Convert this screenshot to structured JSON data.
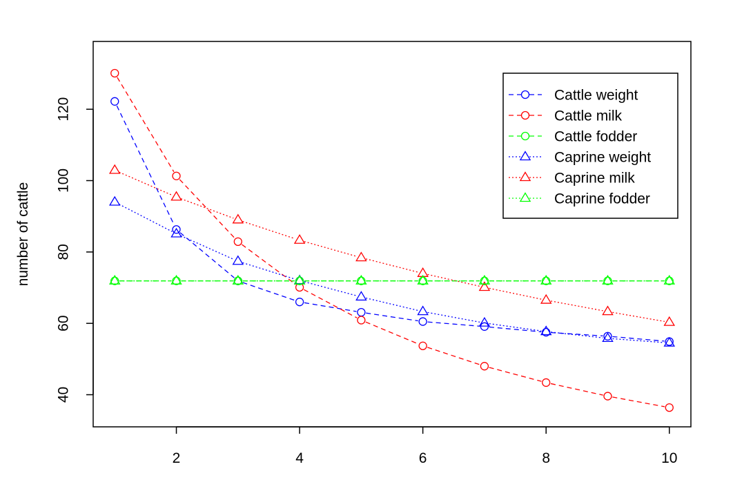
{
  "chart_data": {
    "type": "line",
    "title": "",
    "xlabel": "",
    "ylabel": "number of cattle",
    "xlim": [
      0.65,
      10.35
    ],
    "ylim": [
      31,
      139
    ],
    "xticks": [
      2,
      4,
      6,
      8,
      10
    ],
    "yticks": [
      40,
      60,
      80,
      100,
      120
    ],
    "grid": false,
    "legend_position": "top-right",
    "x": [
      1,
      2,
      3,
      4,
      5,
      6,
      7,
      8,
      9,
      10
    ],
    "series": [
      {
        "name": "Cattle weight",
        "color": "#0000ff",
        "dash": "dashed",
        "marker": "circle",
        "values": [
          122.2,
          86.3,
          71.9,
          66.0,
          63.1,
          60.5,
          59.1,
          57.5,
          56.4,
          54.9
        ]
      },
      {
        "name": "Cattle milk",
        "color": "#ff0000",
        "dash": "dashed",
        "marker": "circle",
        "values": [
          130.1,
          101.3,
          82.9,
          70.1,
          60.9,
          53.7,
          48.0,
          43.4,
          39.6,
          36.4
        ]
      },
      {
        "name": "Cattle fodder",
        "color": "#00ff00",
        "dash": "dashed",
        "marker": "circle",
        "values": [
          71.9,
          71.9,
          71.9,
          71.9,
          71.9,
          71.9,
          71.9,
          71.9,
          71.9,
          71.9
        ]
      },
      {
        "name": "Caprine weight",
        "color": "#0000ff",
        "dash": "dotted",
        "marker": "triangle",
        "values": [
          94.0,
          85.1,
          77.4,
          72.0,
          67.4,
          63.3,
          60.1,
          57.7,
          55.8,
          54.5
        ]
      },
      {
        "name": "Caprine milk",
        "color": "#ff0000",
        "dash": "dotted",
        "marker": "triangle",
        "values": [
          102.9,
          95.4,
          89.0,
          83.3,
          78.4,
          74.0,
          70.1,
          66.5,
          63.3,
          60.3
        ]
      },
      {
        "name": "Caprine fodder",
        "color": "#00ff00",
        "dash": "dotted",
        "marker": "triangle",
        "values": [
          71.9,
          71.9,
          71.9,
          71.9,
          71.9,
          71.9,
          71.9,
          71.9,
          71.9,
          71.9
        ]
      }
    ]
  }
}
